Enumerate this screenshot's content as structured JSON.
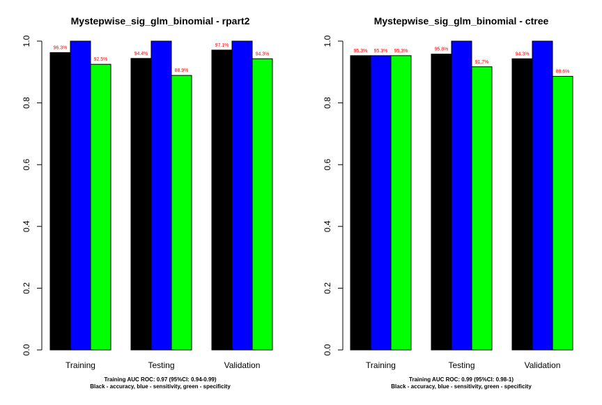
{
  "legend_colors": {
    "accuracy": "#000000",
    "sensitivity": "#0000ff",
    "specificity": "#00ff00",
    "label": "#ff0000"
  },
  "chart_data": [
    {
      "type": "bar",
      "title": "Mystepwise_sig_glm_binomial - rpart2",
      "categories": [
        "Training",
        "Testing",
        "Validation"
      ],
      "series": [
        {
          "values": [
            0.963,
            0.944,
            0.971
          ],
          "labels": [
            "96.3%",
            "94.4%",
            "97.1%"
          ]
        },
        {
          "values": [
            1.0,
            1.0,
            1.0
          ],
          "labels": [
            "",
            "",
            ""
          ]
        },
        {
          "values": [
            0.925,
            0.889,
            0.943
          ],
          "labels": [
            "92.5%",
            "88.9%",
            "94.3%"
          ]
        }
      ],
      "yticks": [
        "0.0",
        "0.2",
        "0.4",
        "0.6",
        "0.8",
        "1.0"
      ],
      "ylim": [
        0,
        1
      ],
      "note_line1": "Training AUC ROC: 0.97 (95%CI: 0.94-0.99)",
      "note_line2": "Black - accuracy, blue - sensitivity, green - specificity"
    },
    {
      "type": "bar",
      "title": "Mystepwise_sig_glm_binomial - ctree",
      "categories": [
        "Training",
        "Testing",
        "Validation"
      ],
      "series": [
        {
          "values": [
            0.953,
            0.958,
            0.943
          ],
          "labels": [
            "95.3%",
            "95.8%",
            "94.3%"
          ]
        },
        {
          "values": [
            0.953,
            1.0,
            1.0
          ],
          "labels": [
            "95.3%",
            "",
            ""
          ]
        },
        {
          "values": [
            0.953,
            0.917,
            0.886
          ],
          "labels": [
            "95.3%",
            "91.7%",
            "88.6%"
          ]
        }
      ],
      "yticks": [
        "0.0",
        "0.2",
        "0.4",
        "0.6",
        "0.8",
        "1.0"
      ],
      "ylim": [
        0,
        1
      ],
      "note_line1": "Training AUC ROC: 0.99 (95%CI: 0.98-1)",
      "note_line2": "Black - accuracy, blue - sensitivity, green - specificity"
    }
  ]
}
